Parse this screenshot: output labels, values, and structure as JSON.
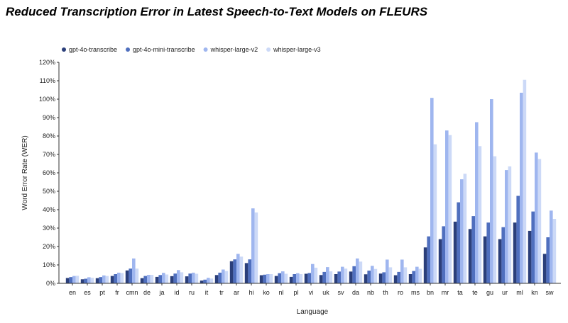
{
  "chart_data": {
    "type": "bar",
    "title": "Reduced Transcription Error in Latest Speech-to-Text Models on FLEURS",
    "xlabel": "Language",
    "ylabel": "Word Error Rate (WER)",
    "ylim": [
      0,
      120
    ],
    "yticks": [
      "0%",
      "10%",
      "20%",
      "30%",
      "40%",
      "50%",
      "60%",
      "70%",
      "80%",
      "90%",
      "100%",
      "110%",
      "120%"
    ],
    "grid": false,
    "legend_position": "top-left",
    "categories": [
      "en",
      "es",
      "pt",
      "fr",
      "cmn",
      "de",
      "ja",
      "id",
      "ru",
      "it",
      "tr",
      "ar",
      "hi",
      "ko",
      "nl",
      "pl",
      "vi",
      "uk",
      "sv",
      "da",
      "nb",
      "th",
      "ro",
      "ms",
      "bn",
      "mr",
      "ta",
      "te",
      "gu",
      "ur",
      "ml",
      "kn",
      "sw"
    ],
    "series": [
      {
        "name": "gpt-4o-transcribe",
        "color": "#2b3f7a",
        "values": [
          2.9,
          2.2,
          2.8,
          4.0,
          7.0,
          2.8,
          3.5,
          3.9,
          3.8,
          1.5,
          4.5,
          12.0,
          11.0,
          4.4,
          4.0,
          3.5,
          5.2,
          4.5,
          5.0,
          6.4,
          4.9,
          5.3,
          4.4,
          5.0,
          19.5,
          24.0,
          33.5,
          29.5,
          25.5,
          24.0,
          33.0,
          28.5,
          16.0
        ]
      },
      {
        "name": "gpt-4o-mini-transcribe",
        "color": "#4f6fbe",
        "values": [
          3.4,
          2.5,
          3.4,
          5.0,
          8.0,
          4.0,
          4.5,
          5.3,
          5.3,
          2.0,
          5.8,
          13.0,
          13.0,
          4.7,
          5.5,
          5.0,
          5.6,
          6.2,
          6.4,
          9.3,
          6.9,
          6.0,
          6.2,
          6.7,
          25.5,
          31.0,
          44.0,
          36.5,
          33.0,
          30.5,
          47.5,
          39.0,
          25.0
        ]
      },
      {
        "name": "whisper-large-v2",
        "color": "#9fb6ef",
        "values": [
          4.0,
          3.3,
          4.3,
          5.8,
          13.5,
          4.6,
          5.7,
          7.2,
          5.8,
          3.0,
          7.5,
          16.0,
          40.7,
          5.0,
          6.5,
          5.5,
          10.5,
          8.8,
          9.0,
          13.5,
          9.5,
          12.9,
          12.9,
          9.0,
          100.7,
          83.0,
          56.5,
          87.5,
          100.0,
          61.5,
          103.5,
          71.0,
          39.5
        ]
      },
      {
        "name": "whisper-large-v3",
        "color": "#ccd9f7",
        "values": [
          4.1,
          3.0,
          4.0,
          5.6,
          8.0,
          4.6,
          4.8,
          6.0,
          5.2,
          2.6,
          6.7,
          14.5,
          38.5,
          5.0,
          5.2,
          5.0,
          8.5,
          6.5,
          8.0,
          11.8,
          7.8,
          8.7,
          8.7,
          7.9,
          75.5,
          80.5,
          59.5,
          74.5,
          69.0,
          63.5,
          110.5,
          67.5,
          35.0
        ]
      }
    ]
  }
}
